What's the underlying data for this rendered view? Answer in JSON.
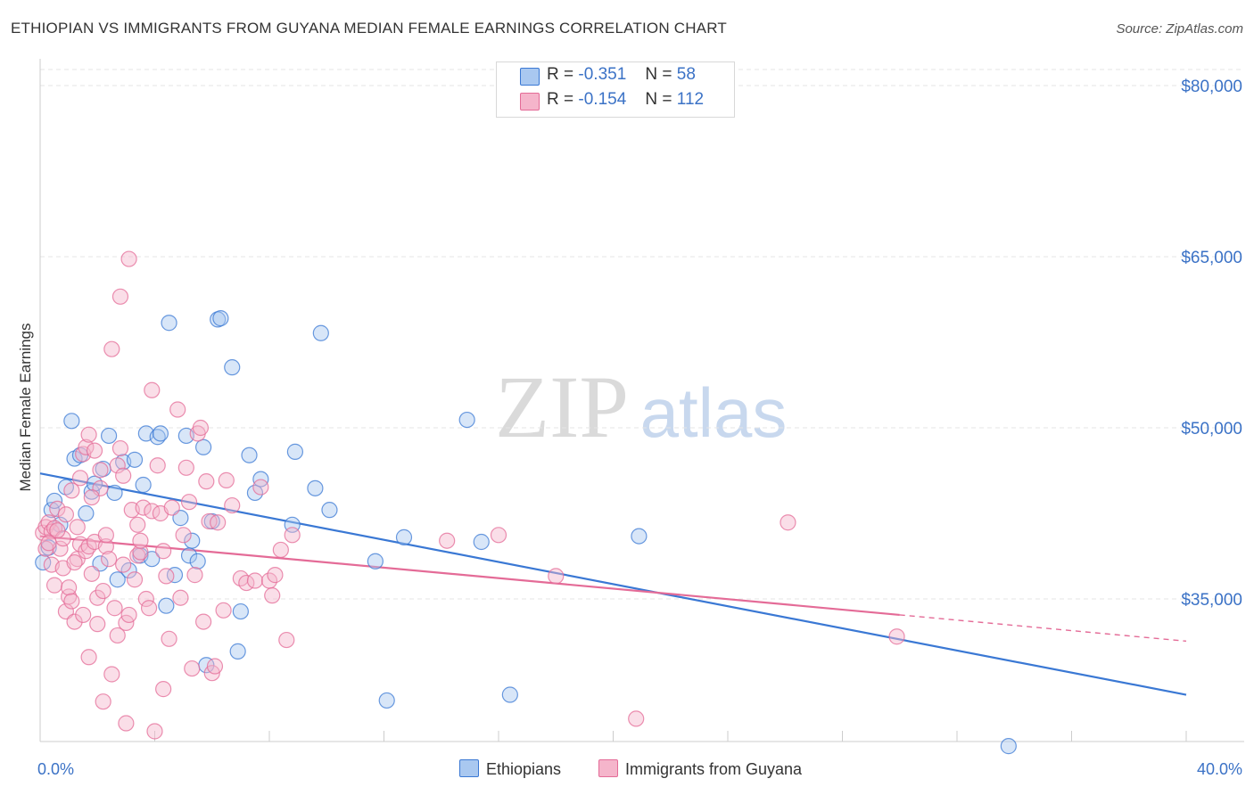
{
  "title": "ETHIOPIAN VS IMMIGRANTS FROM GUYANA MEDIAN FEMALE EARNINGS CORRELATION CHART",
  "source": "Source: ZipAtlas.com",
  "watermark": {
    "zip": "ZIP",
    "atlas": "atlas"
  },
  "stats": [
    {
      "r_label": "R =",
      "r_value": "-0.351",
      "n_label": "N =",
      "n_value": "58"
    },
    {
      "r_label": "R =",
      "r_value": "-0.154",
      "n_label": "N =",
      "n_value": "112"
    }
  ],
  "legend": [
    "Ethiopians",
    "Immigrants from Guyana"
  ],
  "colors": {
    "blue": "#3a78d4",
    "blue_fill": "#a9c8f0",
    "pink": "#e46b97",
    "pink_fill": "#f5b5cb",
    "grid": "#e6e6e6",
    "tick_label": "#3b72c6"
  },
  "chart_data": {
    "type": "scatter",
    "title": "ETHIOPIAN VS IMMIGRANTS FROM GUYANA MEDIAN FEMALE EARNINGS CORRELATION CHART",
    "xlabel": "",
    "ylabel": "Median Female Earnings",
    "xlim": [
      0,
      40
    ],
    "ylim": [
      20000,
      82000
    ],
    "x_tick_labels": [
      "0.0%",
      "40.0%"
    ],
    "y_ticks": [
      35000,
      50000,
      65000,
      80000
    ],
    "y_tick_labels": [
      "$35,000",
      "$50,000",
      "$65,000",
      "$80,000"
    ],
    "series": [
      {
        "name": "Ethiopians",
        "color": "#3a78d4",
        "trend": {
          "x0": 0,
          "y0": 46000,
          "x1": 40,
          "y1": 26600,
          "solid_until": 40
        },
        "points": [
          [
            0.1,
            38200
          ],
          [
            0.3,
            39500
          ],
          [
            0.4,
            42800
          ],
          [
            0.5,
            43600
          ],
          [
            0.7,
            41500
          ],
          [
            0.9,
            44800
          ],
          [
            1.1,
            50600
          ],
          [
            1.2,
            47300
          ],
          [
            1.4,
            47600
          ],
          [
            1.6,
            42500
          ],
          [
            1.8,
            44400
          ],
          [
            1.9,
            45100
          ],
          [
            2.1,
            38100
          ],
          [
            2.2,
            46400
          ],
          [
            2.4,
            49300
          ],
          [
            2.6,
            44300
          ],
          [
            2.7,
            36700
          ],
          [
            2.9,
            47000
          ],
          [
            3.1,
            37500
          ],
          [
            3.3,
            47200
          ],
          [
            3.5,
            38800
          ],
          [
            3.6,
            45000
          ],
          [
            3.7,
            49500
          ],
          [
            3.9,
            38500
          ],
          [
            4.1,
            49200
          ],
          [
            4.2,
            49500
          ],
          [
            4.4,
            34400
          ],
          [
            4.5,
            59200
          ],
          [
            4.7,
            37100
          ],
          [
            4.9,
            42100
          ],
          [
            5.1,
            49300
          ],
          [
            5.2,
            38800
          ],
          [
            5.3,
            40100
          ],
          [
            5.5,
            38300
          ],
          [
            5.7,
            48300
          ],
          [
            5.8,
            29200
          ],
          [
            6.0,
            41800
          ],
          [
            6.2,
            59500
          ],
          [
            6.3,
            59600
          ],
          [
            6.7,
            55300
          ],
          [
            6.9,
            30400
          ],
          [
            7.0,
            33900
          ],
          [
            7.3,
            47600
          ],
          [
            7.5,
            44300
          ],
          [
            7.7,
            45500
          ],
          [
            8.8,
            41500
          ],
          [
            8.9,
            47900
          ],
          [
            9.6,
            44700
          ],
          [
            9.8,
            58300
          ],
          [
            10.1,
            42800
          ],
          [
            11.7,
            38300
          ],
          [
            12.1,
            26100
          ],
          [
            12.7,
            40400
          ],
          [
            14.9,
            50700
          ],
          [
            15.4,
            40000
          ],
          [
            16.4,
            26600
          ],
          [
            20.9,
            40500
          ],
          [
            33.8,
            22100
          ]
        ]
      },
      {
        "name": "Immigrants from Guyana",
        "color": "#e46b97",
        "trend": {
          "x0": 0,
          "y0": 40500,
          "x1": 40,
          "y1": 31300,
          "solid_until": 30.0
        },
        "points": [
          [
            0.1,
            40800
          ],
          [
            0.2,
            41300
          ],
          [
            0.2,
            39400
          ],
          [
            0.3,
            41700
          ],
          [
            0.4,
            40900
          ],
          [
            0.4,
            38000
          ],
          [
            0.5,
            41200
          ],
          [
            0.5,
            36200
          ],
          [
            0.6,
            42900
          ],
          [
            0.7,
            39400
          ],
          [
            0.8,
            40300
          ],
          [
            0.8,
            37700
          ],
          [
            0.9,
            33900
          ],
          [
            1.0,
            35200
          ],
          [
            1.0,
            36000
          ],
          [
            1.1,
            34800
          ],
          [
            1.1,
            44500
          ],
          [
            1.2,
            33000
          ],
          [
            1.3,
            38500
          ],
          [
            1.3,
            41300
          ],
          [
            1.4,
            39800
          ],
          [
            1.4,
            45600
          ],
          [
            1.5,
            47700
          ],
          [
            1.5,
            33600
          ],
          [
            1.6,
            48300
          ],
          [
            1.6,
            39200
          ],
          [
            1.7,
            39600
          ],
          [
            1.7,
            49400
          ],
          [
            1.7,
            29900
          ],
          [
            1.8,
            37200
          ],
          [
            1.9,
            40000
          ],
          [
            1.9,
            48000
          ],
          [
            2.0,
            35100
          ],
          [
            2.0,
            32800
          ],
          [
            2.1,
            46300
          ],
          [
            2.1,
            44700
          ],
          [
            2.2,
            26000
          ],
          [
            2.3,
            39600
          ],
          [
            2.3,
            40600
          ],
          [
            2.4,
            38500
          ],
          [
            2.5,
            28400
          ],
          [
            2.5,
            56900
          ],
          [
            2.6,
            34200
          ],
          [
            2.7,
            46700
          ],
          [
            2.7,
            31800
          ],
          [
            2.8,
            48200
          ],
          [
            2.8,
            61500
          ],
          [
            2.9,
            45800
          ],
          [
            3.0,
            24100
          ],
          [
            3.0,
            32900
          ],
          [
            3.1,
            33600
          ],
          [
            3.1,
            64800
          ],
          [
            3.2,
            42800
          ],
          [
            3.3,
            36700
          ],
          [
            3.4,
            38800
          ],
          [
            3.5,
            39100
          ],
          [
            3.5,
            40100
          ],
          [
            3.6,
            43000
          ],
          [
            3.7,
            35000
          ],
          [
            3.8,
            34200
          ],
          [
            3.9,
            53300
          ],
          [
            3.9,
            42700
          ],
          [
            4.0,
            23400
          ],
          [
            4.1,
            46700
          ],
          [
            4.2,
            42500
          ],
          [
            4.3,
            27100
          ],
          [
            4.3,
            39200
          ],
          [
            4.4,
            37000
          ],
          [
            4.5,
            31500
          ],
          [
            4.6,
            43000
          ],
          [
            4.8,
            51600
          ],
          [
            4.9,
            35100
          ],
          [
            5.0,
            40600
          ],
          [
            5.1,
            46500
          ],
          [
            5.2,
            43500
          ],
          [
            5.3,
            28900
          ],
          [
            5.4,
            37100
          ],
          [
            5.5,
            49500
          ],
          [
            5.6,
            50000
          ],
          [
            5.7,
            33000
          ],
          [
            5.8,
            45300
          ],
          [
            5.9,
            41800
          ],
          [
            6.0,
            28500
          ],
          [
            6.1,
            29100
          ],
          [
            6.2,
            41700
          ],
          [
            6.4,
            34000
          ],
          [
            6.5,
            45400
          ],
          [
            6.7,
            43200
          ],
          [
            7.0,
            36800
          ],
          [
            7.2,
            36400
          ],
          [
            7.5,
            36600
          ],
          [
            7.7,
            44800
          ],
          [
            8.0,
            36600
          ],
          [
            8.1,
            35300
          ],
          [
            8.2,
            37100
          ],
          [
            8.4,
            39300
          ],
          [
            8.6,
            31400
          ],
          [
            8.8,
            40600
          ],
          [
            14.2,
            40100
          ],
          [
            16.0,
            40600
          ],
          [
            18.0,
            37000
          ],
          [
            20.8,
            24500
          ],
          [
            26.1,
            41700
          ],
          [
            29.9,
            31700
          ],
          [
            0.3,
            39900
          ],
          [
            0.6,
            41000
          ],
          [
            0.9,
            42400
          ],
          [
            1.2,
            38200
          ],
          [
            1.8,
            43900
          ],
          [
            2.2,
            35700
          ],
          [
            2.9,
            38000
          ],
          [
            3.4,
            41500
          ]
        ]
      }
    ]
  }
}
